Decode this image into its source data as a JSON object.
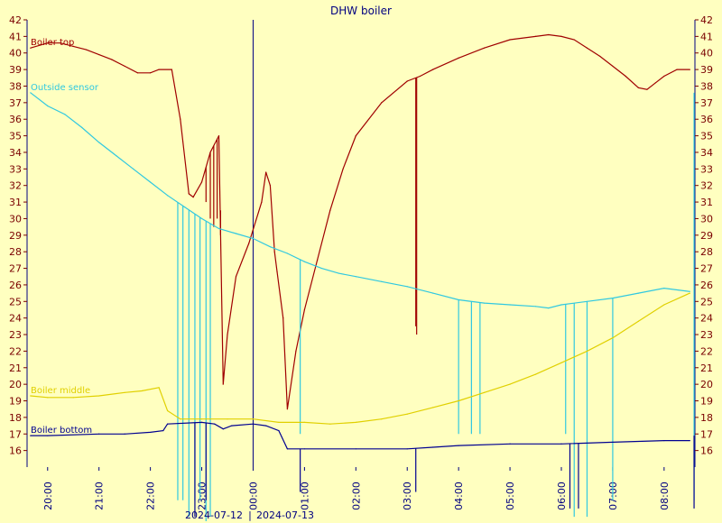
{
  "chart_data": {
    "type": "line",
    "title": "DHW boiler",
    "ylim": [
      15,
      42
    ],
    "yticks": [
      16,
      17,
      18,
      19,
      20,
      21,
      22,
      23,
      24,
      25,
      26,
      27,
      28,
      29,
      30,
      31,
      32,
      33,
      34,
      35,
      36,
      37,
      38,
      39,
      40,
      41,
      42
    ],
    "x_range_hours": [
      19.6,
      8.6
    ],
    "x_ticks": [
      "20:00",
      "21:00",
      "22:00",
      "23:00",
      "00:00",
      "01:00",
      "02:00",
      "03:00",
      "04:00",
      "05:00",
      "06:00",
      "07:00",
      "08:00"
    ],
    "date_labels": [
      "2024-07-12",
      "2024-07-13"
    ],
    "date_separator": "|",
    "day_boundary": "00:00",
    "grid": false,
    "series": [
      {
        "name": "Boiler top",
        "color": "#a00000",
        "points": [
          [
            "19:40",
            40.3
          ],
          [
            "20:00",
            40.6
          ],
          [
            "20:15",
            40.6
          ],
          [
            "20:30",
            40.4
          ],
          [
            "20:45",
            40.2
          ],
          [
            "21:00",
            39.9
          ],
          [
            "21:15",
            39.6
          ],
          [
            "21:30",
            39.2
          ],
          [
            "21:45",
            38.8
          ],
          [
            "22:00",
            38.8
          ],
          [
            "22:10",
            39.0
          ],
          [
            "22:25",
            39.0
          ],
          [
            "22:35",
            36.0
          ],
          [
            "22:45",
            31.5
          ],
          [
            "22:50",
            31.3
          ],
          [
            "23:00",
            32.2
          ],
          [
            "23:10",
            34.0
          ],
          [
            "23:20",
            35.0
          ],
          [
            "23:25",
            20.0
          ],
          [
            "23:30",
            23.0
          ],
          [
            "23:40",
            26.5
          ],
          [
            "23:55",
            28.5
          ],
          [
            "00:10",
            31.0
          ],
          [
            "00:15",
            32.8
          ],
          [
            "00:20",
            32.0
          ],
          [
            "00:25",
            28.0
          ],
          [
            "00:28",
            26.8
          ],
          [
            "00:35",
            24.0
          ],
          [
            "00:40",
            18.5
          ],
          [
            "00:50",
            22.0
          ],
          [
            "01:00",
            24.5
          ],
          [
            "01:15",
            27.5
          ],
          [
            "01:30",
            30.5
          ],
          [
            "01:45",
            33.0
          ],
          [
            "02:00",
            35.0
          ],
          [
            "02:30",
            37.0
          ],
          [
            "03:00",
            38.3
          ],
          [
            "03:15",
            38.6
          ],
          [
            "03:30",
            39.0
          ],
          [
            "04:00",
            39.7
          ],
          [
            "04:30",
            40.3
          ],
          [
            "05:00",
            40.8
          ],
          [
            "05:30",
            41.0
          ],
          [
            "05:45",
            41.1
          ],
          [
            "06:00",
            41.0
          ],
          [
            "06:15",
            40.8
          ],
          [
            "06:30",
            40.3
          ],
          [
            "06:45",
            39.8
          ],
          [
            "07:00",
            39.2
          ],
          [
            "07:15",
            38.6
          ],
          [
            "07:30",
            37.9
          ],
          [
            "07:40",
            37.8
          ],
          [
            "07:50",
            38.2
          ],
          [
            "08:00",
            38.6
          ],
          [
            "08:15",
            39.0
          ],
          [
            "08:30",
            39.0
          ]
        ],
        "dips": [
          [
            "23:05",
            31.0
          ],
          [
            "23:10",
            30.0
          ],
          [
            "23:14",
            29.5
          ],
          [
            "23:18",
            30.0
          ],
          [
            "23:22",
            30.5
          ],
          [
            "03:10",
            23.5
          ],
          [
            "03:11",
            23.0
          ]
        ]
      },
      {
        "name": "Outside sensor",
        "color": "#30c8e0",
        "points": [
          [
            "19:40",
            37.6
          ],
          [
            "20:00",
            36.8
          ],
          [
            "20:20",
            36.3
          ],
          [
            "20:40",
            35.5
          ],
          [
            "21:00",
            34.6
          ],
          [
            "21:20",
            33.8
          ],
          [
            "21:40",
            33.0
          ],
          [
            "22:00",
            32.2
          ],
          [
            "22:20",
            31.4
          ],
          [
            "22:40",
            30.7
          ],
          [
            "23:00",
            30.0
          ],
          [
            "23:20",
            29.4
          ],
          [
            "23:40",
            29.1
          ],
          [
            "00:00",
            28.8
          ],
          [
            "00:20",
            28.3
          ],
          [
            "00:40",
            27.9
          ],
          [
            "01:00",
            27.4
          ],
          [
            "01:20",
            27.0
          ],
          [
            "01:40",
            26.7
          ],
          [
            "02:00",
            26.5
          ],
          [
            "02:30",
            26.2
          ],
          [
            "03:00",
            25.9
          ],
          [
            "03:30",
            25.5
          ],
          [
            "04:00",
            25.1
          ],
          [
            "04:30",
            24.9
          ],
          [
            "05:00",
            24.8
          ],
          [
            "05:30",
            24.7
          ],
          [
            "05:45",
            24.6
          ],
          [
            "06:00",
            24.8
          ],
          [
            "06:30",
            25.0
          ],
          [
            "07:00",
            25.2
          ],
          [
            "07:30",
            25.5
          ],
          [
            "08:00",
            25.8
          ],
          [
            "08:30",
            25.6
          ]
        ],
        "dips": [
          [
            "22:32",
            13.0
          ],
          [
            "22:38",
            13.0
          ],
          [
            "22:45",
            12.0
          ],
          [
            "22:52",
            13.0
          ],
          [
            "22:58",
            13.0
          ],
          [
            "23:05",
            11.5
          ],
          [
            "23:10",
            12.0
          ],
          [
            "00:55",
            17.0
          ],
          [
            "04:00",
            17.0
          ],
          [
            "04:15",
            17.0
          ],
          [
            "04:25",
            17.0
          ],
          [
            "06:05",
            17.0
          ],
          [
            "06:15",
            12.0
          ],
          [
            "06:30",
            12.0
          ],
          [
            "07:00",
            13.0
          ],
          [
            "08:35",
            13.0
          ]
        ]
      },
      {
        "name": "Boiler middle",
        "color": "#e0d000",
        "points": [
          [
            "19:40",
            19.3
          ],
          [
            "20:00",
            19.2
          ],
          [
            "20:30",
            19.2
          ],
          [
            "21:00",
            19.3
          ],
          [
            "21:30",
            19.5
          ],
          [
            "21:50",
            19.6
          ],
          [
            "22:10",
            19.8
          ],
          [
            "22:20",
            18.4
          ],
          [
            "22:35",
            17.9
          ],
          [
            "23:00",
            17.9
          ],
          [
            "23:30",
            17.9
          ],
          [
            "00:00",
            17.9
          ],
          [
            "00:30",
            17.7
          ],
          [
            "01:00",
            17.7
          ],
          [
            "01:30",
            17.6
          ],
          [
            "02:00",
            17.7
          ],
          [
            "02:30",
            17.9
          ],
          [
            "03:00",
            18.2
          ],
          [
            "03:30",
            18.6
          ],
          [
            "04:00",
            19.0
          ],
          [
            "04:30",
            19.5
          ],
          [
            "05:00",
            20.0
          ],
          [
            "05:30",
            20.6
          ],
          [
            "06:00",
            21.3
          ],
          [
            "06:30",
            22.0
          ],
          [
            "07:00",
            22.8
          ],
          [
            "07:30",
            23.8
          ],
          [
            "08:00",
            24.8
          ],
          [
            "08:30",
            25.5
          ]
        ],
        "dips": []
      },
      {
        "name": "Boiler bottom",
        "color": "#000090",
        "points": [
          [
            "19:40",
            16.9
          ],
          [
            "20:00",
            16.9
          ],
          [
            "21:00",
            17.0
          ],
          [
            "21:30",
            17.0
          ],
          [
            "22:00",
            17.1
          ],
          [
            "22:15",
            17.2
          ],
          [
            "22:20",
            17.6
          ],
          [
            "23:00",
            17.7
          ],
          [
            "23:15",
            17.6
          ],
          [
            "23:25",
            17.3
          ],
          [
            "23:35",
            17.5
          ],
          [
            "00:00",
            17.6
          ],
          [
            "00:15",
            17.5
          ],
          [
            "00:30",
            17.2
          ],
          [
            "00:40",
            16.1
          ],
          [
            "01:00",
            16.1
          ],
          [
            "02:00",
            16.1
          ],
          [
            "03:00",
            16.1
          ],
          [
            "03:30",
            16.2
          ],
          [
            "04:00",
            16.3
          ],
          [
            "05:00",
            16.4
          ],
          [
            "06:00",
            16.4
          ],
          [
            "07:00",
            16.5
          ],
          [
            "08:00",
            16.6
          ],
          [
            "08:30",
            16.6
          ]
        ],
        "dips": [
          [
            "22:52",
            12.0
          ],
          [
            "23:05",
            13.0
          ],
          [
            "00:55",
            13.5
          ],
          [
            "03:10",
            13.5
          ],
          [
            "06:10",
            12.5
          ],
          [
            "06:20",
            12.5
          ],
          [
            "08:35",
            12.5
          ]
        ]
      }
    ]
  }
}
